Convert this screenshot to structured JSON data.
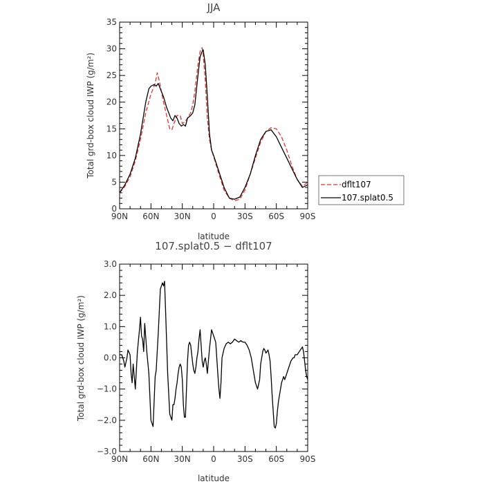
{
  "chart_data": [
    {
      "type": "line",
      "title": "JJA",
      "xlabel": "latitude",
      "ylabel": "Total grd-box cloud IWP (g/m²)",
      "xlim": [
        90,
        -90
      ],
      "ylim": [
        0,
        35
      ],
      "xticks": [
        90,
        60,
        30,
        0,
        -30,
        -60,
        -90
      ],
      "xtick_labels": [
        "90N",
        "60N",
        "30N",
        "0",
        "30S",
        "60S",
        "90S"
      ],
      "yticks": [
        0,
        5,
        10,
        15,
        20,
        25,
        30,
        35
      ],
      "ytick_labels": [
        "0",
        "5",
        "10",
        "15",
        "20",
        "25",
        "30",
        "35"
      ],
      "legend": "outside-right",
      "series": [
        {
          "name": "dflt107",
          "color": "#e8312a",
          "dash": "dashed",
          "x": [
            90,
            85,
            80,
            75,
            70,
            65,
            60,
            58,
            56,
            54,
            52,
            50,
            48,
            45,
            42,
            40,
            38,
            35,
            32,
            30,
            28,
            25,
            22,
            20,
            18,
            15,
            13,
            11,
            10,
            8,
            6,
            4,
            2,
            0,
            -5,
            -10,
            -15,
            -20,
            -25,
            -30,
            -35,
            -40,
            -45,
            -50,
            -55,
            -60,
            -65,
            -70,
            -75,
            -80,
            -85,
            -90
          ],
          "y": [
            3.0,
            4.2,
            6.0,
            9.0,
            13.0,
            18.0,
            21.5,
            22.5,
            23.5,
            25.5,
            24.0,
            22.0,
            20.0,
            17.5,
            15.0,
            14.8,
            16.0,
            17.5,
            17.5,
            16.0,
            16.2,
            17.0,
            18.0,
            19.5,
            22.0,
            27.0,
            29.5,
            30.2,
            29.0,
            24.0,
            17.0,
            13.0,
            11.0,
            9.8,
            6.5,
            3.5,
            2.0,
            1.5,
            1.8,
            3.5,
            6.5,
            9.5,
            12.5,
            14.5,
            15.2,
            15.0,
            13.5,
            11.0,
            8.0,
            5.5,
            4.2,
            5.0
          ]
        },
        {
          "name": "107.splat0.5",
          "color": "#000000",
          "dash": "solid",
          "x": [
            90,
            85,
            80,
            75,
            70,
            65,
            62,
            60,
            57,
            55,
            53,
            50,
            48,
            45,
            43,
            41,
            39,
            37,
            35,
            33,
            31,
            29,
            27,
            25,
            22,
            20,
            18,
            15,
            13,
            11,
            10,
            8,
            6,
            4,
            2,
            0,
            -5,
            -10,
            -15,
            -20,
            -25,
            -30,
            -35,
            -40,
            -45,
            -50,
            -55,
            -60,
            -65,
            -70,
            -75,
            -80,
            -85,
            -90
          ],
          "y": [
            3.0,
            4.5,
            6.5,
            9.5,
            14.0,
            20.0,
            22.5,
            23.0,
            23.3,
            23.0,
            23.5,
            22.0,
            21.0,
            19.0,
            18.0,
            17.0,
            16.5,
            17.5,
            17.0,
            16.0,
            15.5,
            15.8,
            15.5,
            17.0,
            17.5,
            18.0,
            19.5,
            25.0,
            28.5,
            29.5,
            29.8,
            27.0,
            21.0,
            14.0,
            11.0,
            10.0,
            7.0,
            4.0,
            2.0,
            1.8,
            2.2,
            4.0,
            6.5,
            10.0,
            13.0,
            14.5,
            14.8,
            13.5,
            11.5,
            9.5,
            7.5,
            5.5,
            4.0,
            4.5
          ]
        }
      ]
    },
    {
      "type": "line",
      "title": "107.splat0.5 − dflt107",
      "xlabel": "latitude",
      "ylabel": "Total grd-box cloud IWP (g/m²)",
      "xlim": [
        90,
        -90
      ],
      "ylim": [
        -3.0,
        3.0
      ],
      "xticks": [
        90,
        60,
        30,
        0,
        -30,
        -60,
        -90
      ],
      "xtick_labels": [
        "90N",
        "60N",
        "30N",
        "0",
        "30S",
        "60S",
        "90S"
      ],
      "yticks": [
        -3,
        -2,
        -1,
        0,
        1,
        2,
        3
      ],
      "ytick_labels": [
        "−3.0",
        "−2.0",
        "−1.0",
        "0.0",
        "1.0",
        "2.0",
        "3.0"
      ],
      "series": [
        {
          "name": "",
          "color": "#000000",
          "dash": "solid",
          "x": [
            90,
            88,
            86,
            85,
            83,
            82,
            80,
            79,
            78,
            77,
            76,
            75,
            73,
            71,
            70,
            69,
            68,
            67,
            66,
            64,
            62,
            60,
            58,
            56,
            55,
            53,
            51,
            49,
            48,
            47,
            46,
            44,
            42,
            40,
            39,
            38,
            37,
            36,
            35,
            34,
            33,
            32,
            31,
            30,
            29,
            28,
            27,
            26,
            25,
            24,
            23,
            22,
            21,
            20,
            19,
            18,
            17,
            16,
            15,
            14,
            13,
            12,
            11,
            10,
            9,
            8,
            7,
            6,
            5,
            4,
            3,
            2,
            1,
            0,
            -2,
            -4,
            -5,
            -6,
            -7,
            -8,
            -10,
            -12,
            -14,
            -16,
            -18,
            -20,
            -22,
            -24,
            -26,
            -28,
            -30,
            -32,
            -34,
            -36,
            -38,
            -40,
            -42,
            -44,
            -45,
            -46,
            -47,
            -48,
            -49,
            -50,
            -51,
            -52,
            -53,
            -54,
            -55,
            -56,
            -57,
            -58,
            -59,
            -60,
            -61,
            -62,
            -63,
            -64,
            -65,
            -66,
            -67,
            -68,
            -70,
            -72,
            -74,
            -76,
            -77,
            -78,
            -79,
            -80,
            -81,
            -82,
            -83,
            -84,
            -85,
            -86,
            -87,
            -88,
            -89,
            -90
          ],
          "y": [
            0.1,
            0.1,
            -0.1,
            -0.3,
            0.0,
            0.25,
            0.1,
            -0.5,
            -0.8,
            -0.2,
            -0.6,
            -1.0,
            0.2,
            0.9,
            1.3,
            0.7,
            0.6,
            0.2,
            1.1,
            0.2,
            -0.5,
            -2.0,
            -2.2,
            -0.6,
            -0.4,
            0.8,
            2.2,
            2.4,
            2.3,
            2.45,
            1.5,
            -0.5,
            -1.8,
            -2.0,
            -1.5,
            -1.5,
            -1.3,
            -1.0,
            -0.8,
            -0.5,
            -0.3,
            -0.2,
            -0.3,
            -0.7,
            -1.5,
            -1.9,
            -1.9,
            -1.0,
            -0.1,
            0.4,
            0.5,
            0.4,
            0.1,
            -0.2,
            -0.4,
            -0.5,
            -0.3,
            0.0,
            0.2,
            0.6,
            0.9,
            0.4,
            -0.1,
            -0.3,
            -0.1,
            0.0,
            -0.2,
            -0.5,
            -0.1,
            0.3,
            0.6,
            0.9,
            0.8,
            0.7,
            0.5,
            -0.5,
            -1.0,
            -1.3,
            -0.8,
            0.0,
            0.3,
            0.45,
            0.5,
            0.45,
            0.5,
            0.6,
            0.55,
            0.5,
            0.55,
            0.5,
            0.5,
            0.4,
            0.25,
            0.0,
            -0.4,
            -0.8,
            -1.0,
            -0.7,
            -0.2,
            0.0,
            0.2,
            0.3,
            0.25,
            0.15,
            0.2,
            0.25,
            0.1,
            -0.1,
            -0.6,
            -1.2,
            -1.7,
            -2.2,
            -2.25,
            -2.1,
            -1.7,
            -1.4,
            -1.2,
            -1.0,
            -0.8,
            -0.7,
            -0.6,
            -0.7,
            -0.5,
            -0.3,
            -0.1,
            0.0,
            0.0,
            0.1,
            0.1,
            0.1,
            0.15,
            0.2,
            0.25,
            0.3,
            0.35,
            0.2,
            -0.1,
            -0.4,
            -0.6,
            -0.7
          ]
        }
      ]
    }
  ]
}
